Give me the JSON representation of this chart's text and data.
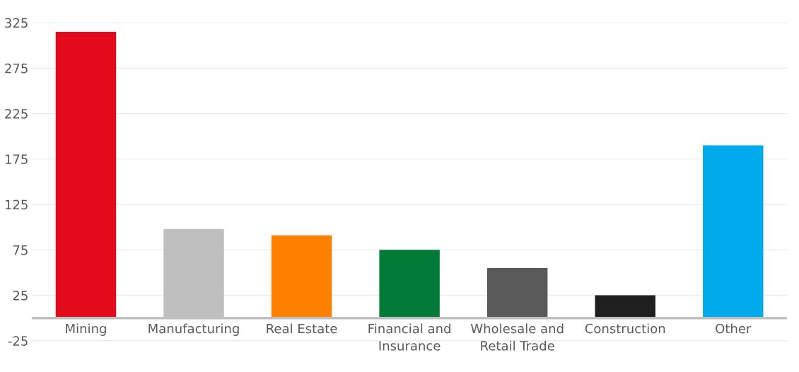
{
  "chart_data": {
    "type": "bar",
    "categories": [
      "Mining",
      "Manufacturing",
      "Real Estate",
      "Financial and\nInsurance",
      "Wholesale and\nRetail Trade",
      "Construction",
      "Other"
    ],
    "values": [
      315,
      98,
      91,
      75,
      55,
      25,
      190
    ],
    "colors": [
      "#e30a1b",
      "#bfbfbf",
      "#ff8000",
      "#007a37",
      "#595959",
      "#1f1f1f",
      "#00aaeb"
    ],
    "ylim": [
      -25,
      325
    ],
    "yticks": [
      -25,
      25,
      75,
      125,
      175,
      225,
      275,
      325
    ],
    "grid": "y",
    "legend": false
  }
}
